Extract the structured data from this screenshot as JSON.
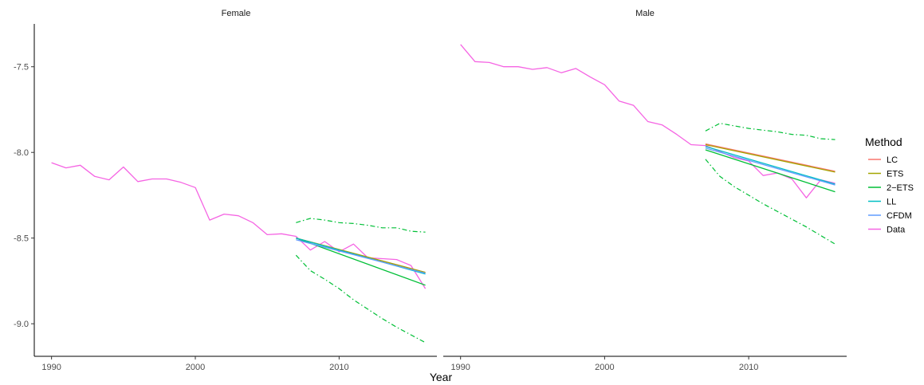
{
  "chart_data": {
    "type": "line",
    "xlabel": "Year",
    "ylabel": "",
    "xlim": [
      1988.8,
      2016.8
    ],
    "ylim": [
      -9.19,
      -7.25
    ],
    "xticks": [
      1990,
      2000,
      2010
    ],
    "xtick_labels": [
      "1990",
      "2000",
      "2010"
    ],
    "yticks": [
      -7.5,
      -8.0,
      -8.5,
      -9.0
    ],
    "ytick_labels": [
      "-7.5",
      "-8.0",
      "-8.5",
      "-9.0"
    ],
    "grid": false,
    "legend": {
      "title": "Method",
      "position": "right",
      "entries": [
        {
          "label": "LC",
          "color": "#F8766D"
        },
        {
          "label": "ETS",
          "color": "#A3A500"
        },
        {
          "label": "2−ETS",
          "color": "#00BF36"
        },
        {
          "label": "LL",
          "color": "#00BFC4"
        },
        {
          "label": "CFDM",
          "color": "#619CFF"
        },
        {
          "label": "Data",
          "color": "#F564E3"
        }
      ]
    },
    "panels": [
      {
        "title": "Female",
        "series": [
          {
            "name": "Data",
            "color": "#F564E3",
            "x": [
              1990,
              1991,
              1992,
              1993,
              1994,
              1995,
              1996,
              1997,
              1998,
              1999,
              2000,
              2001,
              2002,
              2003,
              2004,
              2005,
              2006,
              2007,
              2008,
              2009,
              2010,
              2011,
              2012,
              2013,
              2014,
              2015,
              2016
            ],
            "y": [
              -8.06,
              -8.09,
              -8.075,
              -8.14,
              -8.16,
              -8.085,
              -8.17,
              -8.155,
              -8.155,
              -8.175,
              -8.205,
              -8.395,
              -8.36,
              -8.37,
              -8.41,
              -8.48,
              -8.475,
              -8.49,
              -8.57,
              -8.52,
              -8.58,
              -8.535,
              -8.615,
              -8.62,
              -8.625,
              -8.66,
              -8.795
            ]
          },
          {
            "name": "LC",
            "color": "#F8766D",
            "x": [
              2007,
              2016
            ],
            "y": [
              -8.5,
              -8.7
            ]
          },
          {
            "name": "ETS",
            "color": "#A3A500",
            "x": [
              2007,
              2016
            ],
            "y": [
              -8.5,
              -8.7
            ]
          },
          {
            "name": "LL",
            "color": "#00BFC4",
            "x": [
              2007,
              2016
            ],
            "y": [
              -8.5,
              -8.71
            ]
          },
          {
            "name": "CFDM",
            "color": "#619CFF",
            "x": [
              2007,
              2016
            ],
            "y": [
              -8.51,
              -8.705
            ]
          },
          {
            "name": "2−ETS",
            "color": "#00BF36",
            "x": [
              2007,
              2016
            ],
            "y": [
              -8.5,
              -8.775
            ]
          }
        ],
        "interval": {
          "color": "#00BF36",
          "upper": {
            "x": [
              2007,
              2008,
              2009,
              2010,
              2011,
              2012,
              2013,
              2014,
              2015,
              2016
            ],
            "y": [
              -8.41,
              -8.385,
              -8.395,
              -8.41,
              -8.415,
              -8.425,
              -8.44,
              -8.44,
              -8.46,
              -8.465
            ]
          },
          "lower": {
            "x": [
              2007,
              2008,
              2009,
              2010,
              2011,
              2012,
              2013,
              2014,
              2015,
              2016
            ],
            "y": [
              -8.6,
              -8.69,
              -8.74,
              -8.795,
              -8.86,
              -8.915,
              -8.97,
              -9.02,
              -9.065,
              -9.11
            ]
          }
        }
      },
      {
        "title": "Male",
        "series": [
          {
            "name": "Data",
            "color": "#F564E3",
            "x": [
              1990,
              1991,
              1992,
              1993,
              1994,
              1995,
              1996,
              1997,
              1998,
              1999,
              2000,
              2001,
              2002,
              2003,
              2004,
              2005,
              2006,
              2007,
              2008,
              2009,
              2010,
              2011,
              2012,
              2013,
              2014,
              2015,
              2016
            ],
            "y": [
              -7.37,
              -7.47,
              -7.475,
              -7.5,
              -7.5,
              -7.515,
              -7.505,
              -7.535,
              -7.51,
              -7.56,
              -7.605,
              -7.7,
              -7.725,
              -7.82,
              -7.84,
              -7.895,
              -7.955,
              -7.96,
              -7.995,
              -8.03,
              -8.05,
              -8.135,
              -8.12,
              -8.155,
              -8.265,
              -8.16,
              -8.18
            ]
          },
          {
            "name": "LC",
            "color": "#F8766D",
            "x": [
              2007,
              2016
            ],
            "y": [
              -7.95,
              -8.11
            ]
          },
          {
            "name": "ETS",
            "color": "#A3A500",
            "x": [
              2007,
              2016
            ],
            "y": [
              -7.955,
              -8.115
            ]
          },
          {
            "name": "LL",
            "color": "#00BFC4",
            "x": [
              2007,
              2016
            ],
            "y": [
              -7.965,
              -8.185
            ]
          },
          {
            "name": "CFDM",
            "color": "#619CFF",
            "x": [
              2007,
              2016
            ],
            "y": [
              -7.975,
              -8.19
            ]
          },
          {
            "name": "2−ETS",
            "color": "#00BF36",
            "x": [
              2007,
              2016
            ],
            "y": [
              -7.985,
              -8.23
            ]
          }
        ],
        "interval": {
          "color": "#00BF36",
          "upper": {
            "x": [
              2007,
              2008,
              2009,
              2010,
              2011,
              2012,
              2013,
              2014,
              2015,
              2016
            ],
            "y": [
              -7.875,
              -7.83,
              -7.845,
              -7.86,
              -7.87,
              -7.88,
              -7.895,
              -7.9,
              -7.92,
              -7.925
            ]
          },
          "lower": {
            "x": [
              2007,
              2008,
              2009,
              2010,
              2011,
              2012,
              2013,
              2014,
              2015,
              2016
            ],
            "y": [
              -8.04,
              -8.14,
              -8.2,
              -8.25,
              -8.3,
              -8.345,
              -8.39,
              -8.435,
              -8.485,
              -8.535
            ]
          }
        }
      }
    ]
  }
}
